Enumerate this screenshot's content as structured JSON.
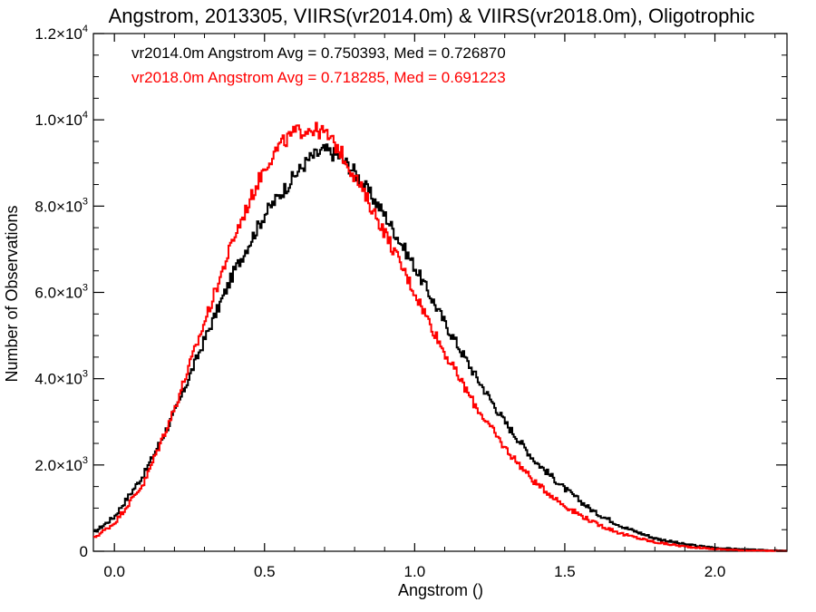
{
  "chart_data": {
    "type": "line",
    "title": "Angstrom, 2013305, VIIRS(vr2014.0m) & VIIRS(vr2018.0m), Oligotrophic",
    "xlabel": "Angstrom ()",
    "ylabel": "Number of Observations",
    "xlim": [
      -0.07,
      2.24
    ],
    "ylim": [
      0,
      12000
    ],
    "xticks": [
      {
        "value": 0.0,
        "label": "0.0"
      },
      {
        "value": 0.5,
        "label": "0.5"
      },
      {
        "value": 1.0,
        "label": "1.0"
      },
      {
        "value": 1.5,
        "label": "1.5"
      },
      {
        "value": 2.0,
        "label": "2.0"
      }
    ],
    "yticks": [
      {
        "value": 0,
        "mant": "0",
        "exp": ""
      },
      {
        "value": 2000,
        "mant": "2.0×10",
        "exp": "3"
      },
      {
        "value": 4000,
        "mant": "4.0×10",
        "exp": "3"
      },
      {
        "value": 6000,
        "mant": "6.0×10",
        "exp": "3"
      },
      {
        "value": 8000,
        "mant": "8.0×10",
        "exp": "3"
      },
      {
        "value": 10000,
        "mant": "1.0×10",
        "exp": "4"
      },
      {
        "value": 12000,
        "mant": "1.2×10",
        "exp": "4"
      }
    ],
    "grid": false,
    "legend_position": "top-left",
    "series": [
      {
        "name": "vr2014.0m",
        "legend": "vr2014.0m Angstrom Avg = 0.750393, Med = 0.726870",
        "color": "#000000",
        "x": [
          -0.07,
          0.0,
          0.1,
          0.2,
          0.3,
          0.4,
          0.5,
          0.6,
          0.65,
          0.7,
          0.75,
          0.8,
          0.9,
          1.0,
          1.1,
          1.2,
          1.3,
          1.4,
          1.5,
          1.6,
          1.7,
          1.8,
          1.9,
          2.0,
          2.1,
          2.24
        ],
        "y": [
          420,
          800,
          1800,
          3200,
          4900,
          6500,
          7800,
          8700,
          9100,
          9300,
          9150,
          8800,
          7800,
          6600,
          5300,
          4100,
          3000,
          2100,
          1450,
          900,
          550,
          300,
          160,
          80,
          40,
          10
        ]
      },
      {
        "name": "vr2018.0m",
        "legend": "vr2018.0m Angstrom Avg = 0.718285, Med = 0.691223",
        "color": "#ff0000",
        "x": [
          -0.07,
          0.0,
          0.1,
          0.2,
          0.3,
          0.4,
          0.5,
          0.55,
          0.6,
          0.65,
          0.7,
          0.75,
          0.8,
          0.9,
          1.0,
          1.1,
          1.2,
          1.3,
          1.4,
          1.5,
          1.6,
          1.7,
          1.8,
          1.9,
          2.0,
          2.1,
          2.24
        ],
        "y": [
          300,
          650,
          1600,
          3300,
          5300,
          7300,
          8900,
          9400,
          9700,
          9800,
          9700,
          9300,
          8700,
          7400,
          6000,
          4600,
          3400,
          2400,
          1600,
          1050,
          650,
          380,
          210,
          110,
          50,
          20,
          5
        ]
      }
    ]
  }
}
